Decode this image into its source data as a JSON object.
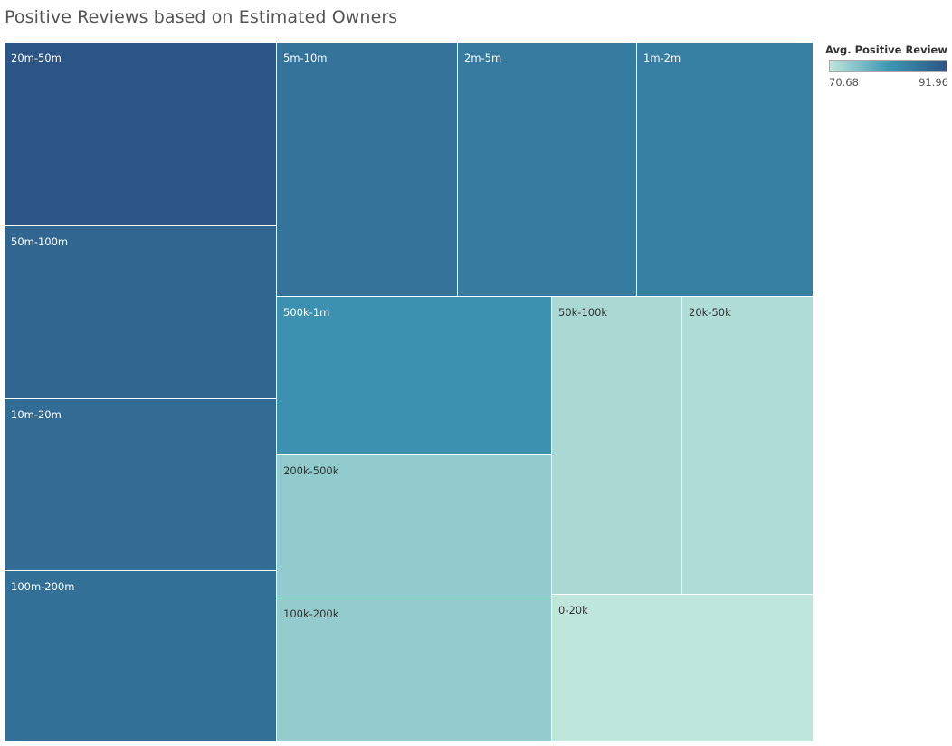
{
  "chart_data": {
    "type": "treemap",
    "title": "Positive Reviews based on Estimated Owners",
    "color_legend": {
      "title": "Avg. Positive Review P..",
      "min_label": "70.68",
      "max_label": "91.96",
      "min": 70.68,
      "max": 91.96,
      "low_color": "#bfe6da",
      "mid_color": "#3d98b4",
      "high_color": "#2c5484"
    },
    "cells": [
      {
        "label": "20m-50m",
        "size": 60717,
        "value": 91.96
      },
      {
        "label": "50m-100m",
        "size": 57966,
        "value": 89.2
      },
      {
        "label": "10m-20m",
        "size": 57063,
        "value": 88.2
      },
      {
        "label": "100m-200m",
        "size": 56759,
        "value": 87.6
      },
      {
        "label": "5m-10m",
        "size": 55911,
        "value": 86.9
      },
      {
        "label": "2m-5m",
        "size": 55351,
        "value": 85.8
      },
      {
        "label": "1m-2m",
        "size": 54116,
        "value": 85.0
      },
      {
        "label": "500k-1m",
        "size": 52827,
        "value": 82.4
      },
      {
        "label": "200k-500k",
        "size": 47868,
        "value": 74.4
      },
      {
        "label": "100k-200k",
        "size": 48468,
        "value": 74.2
      },
      {
        "label": "50k-100k",
        "size": 47216,
        "value": 72.4
      },
      {
        "label": "20k-50k",
        "size": 47216,
        "value": 71.9
      },
      {
        "label": "0-20k",
        "size": 46062,
        "value": 70.68
      }
    ]
  }
}
